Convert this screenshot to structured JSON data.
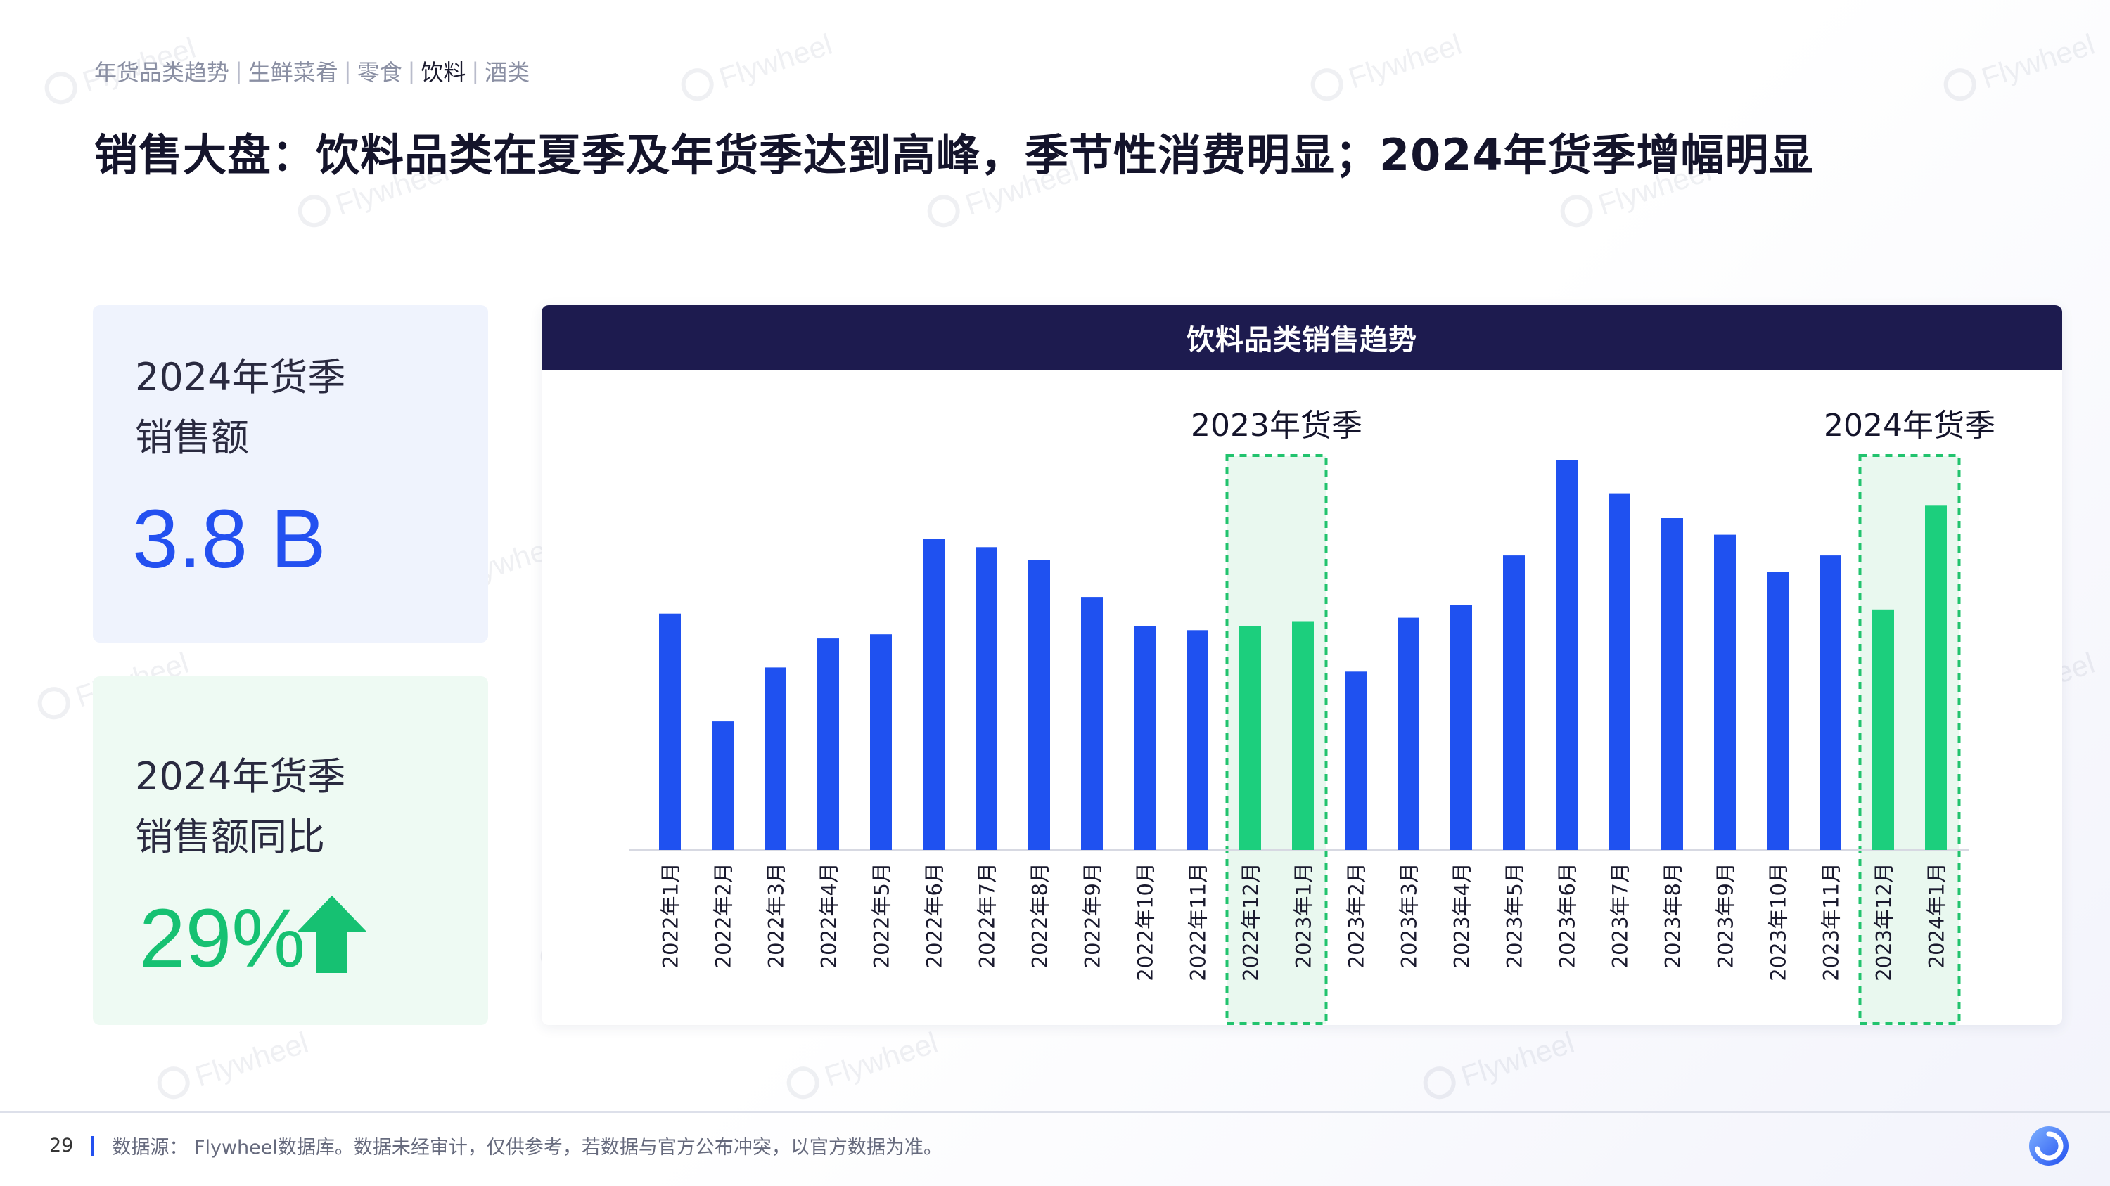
{
  "breadcrumb": {
    "items": [
      "年货品类趋势",
      "生鲜菜肴",
      "零食",
      "饮料",
      "酒类"
    ],
    "active_index": 3
  },
  "title": "销售大盘：饮料品类在夏季及年货季达到高峰，季节性消费明显；2024年货季增幅明显",
  "kpis": {
    "sales": {
      "label_line1": "2024年货季",
      "label_line2": "销售额",
      "value": "3.8 B"
    },
    "yoy": {
      "label_line1": "2024年货季",
      "label_line2": "销售额同比",
      "value": "29%",
      "trend_icon": "up-arrow-icon"
    }
  },
  "chart_data": {
    "type": "bar",
    "title": "饮料品类销售趋势",
    "categories": [
      "2022年1月",
      "2022年2月",
      "2022年3月",
      "2022年4月",
      "2022年5月",
      "2022年6月",
      "2022年7月",
      "2022年8月",
      "2022年9月",
      "2022年10月",
      "2022年11月",
      "2022年12月",
      "2023年1月",
      "2023年2月",
      "2023年3月",
      "2023年4月",
      "2023年5月",
      "2023年6月",
      "2023年7月",
      "2023年8月",
      "2023年9月",
      "2023年10月",
      "2023年11月",
      "2023年12月",
      "2024年1月"
    ],
    "values": [
      57,
      31,
      44,
      51,
      52,
      75,
      73,
      70,
      61,
      54,
      53,
      54,
      55,
      43,
      56,
      59,
      71,
      94,
      86,
      80,
      76,
      67,
      71,
      58,
      83
    ],
    "highlight_indices": [
      11,
      12,
      23,
      24
    ],
    "highlight_groups": [
      {
        "label": "2023年货季",
        "indices": [
          11,
          12
        ]
      },
      {
        "label": "2024年货季",
        "indices": [
          23,
          24
        ]
      }
    ],
    "ylim": [
      0,
      100
    ],
    "xlabel": "",
    "ylabel": "",
    "colors": {
      "normal": "#1f51f0",
      "highlight": "#1ccf7d",
      "frame": "#22c36e",
      "frame_fill": "#e9f8ef"
    }
  },
  "footer": {
    "page_number": "29",
    "source": "数据源： Flywheel数据库。数据未经审计，仅供参考，若数据与官方公布冲突，以官方数据为准。"
  },
  "watermark": "Flywheel",
  "colors": {
    "accent": "#2350f0",
    "positive": "#16c172",
    "header_bg": "#1d1b4f"
  }
}
